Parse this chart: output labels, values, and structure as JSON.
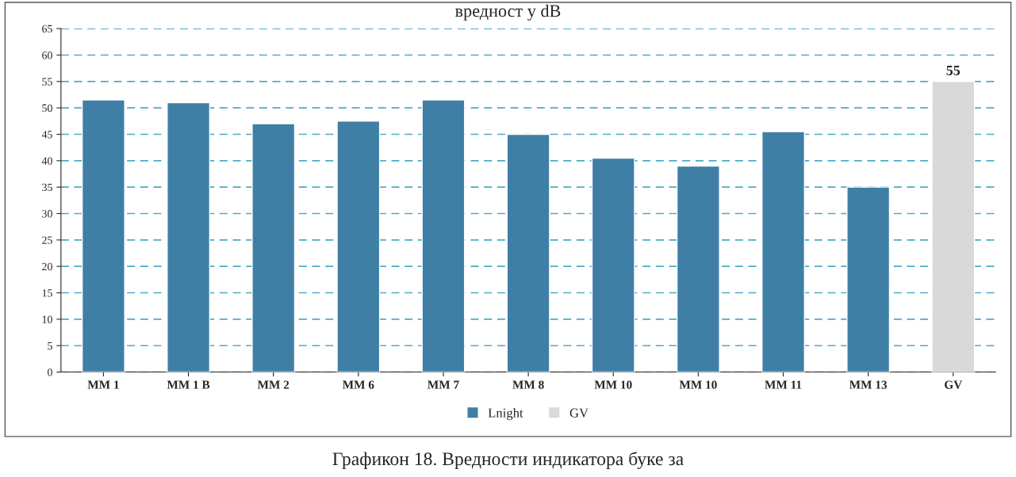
{
  "chart_data": {
    "type": "bar",
    "title": "вредност у dB",
    "categories": [
      "MM 1",
      "MM 1 B",
      "MM 2",
      "MM 6",
      "MM 7",
      "MM 8",
      "MM 10",
      "MM 10",
      "MM 11",
      "MM 13",
      "GV"
    ],
    "series": [
      {
        "name": "Lnight",
        "color": "#3f7fa6",
        "values": [
          51.5,
          51,
          47,
          47.5,
          51.5,
          45,
          40.5,
          39,
          45.5,
          35,
          null
        ]
      },
      {
        "name": "GV",
        "color": "#d9d9d9",
        "values": [
          null,
          null,
          null,
          null,
          null,
          null,
          null,
          null,
          null,
          null,
          55
        ],
        "value_labels": [
          null,
          null,
          null,
          null,
          null,
          null,
          null,
          null,
          null,
          null,
          "55"
        ]
      }
    ],
    "ylim": [
      0,
      65
    ],
    "yticks": [
      0,
      5,
      10,
      15,
      20,
      25,
      30,
      35,
      40,
      45,
      50,
      55,
      60,
      65
    ],
    "grid": "y",
    "legend": "bottom",
    "annotations": [
      "Графикон 18. Вредности индикатора буке за"
    ]
  }
}
